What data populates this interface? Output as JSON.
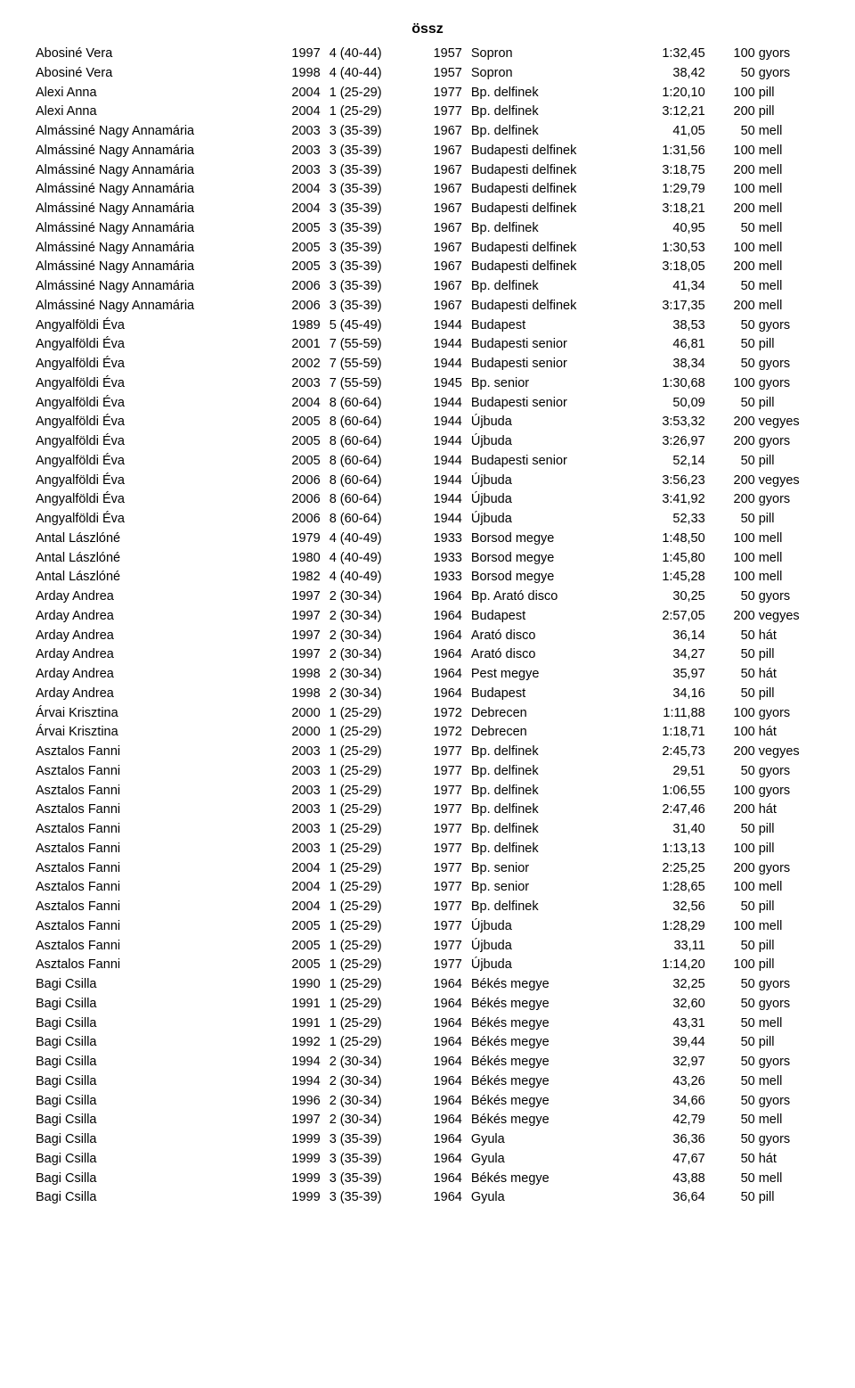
{
  "title": "össz",
  "table": {
    "rows": [
      [
        "Abosiné Vera",
        "1997",
        "4 (40-44)",
        "1957",
        "Sopron",
        "1:32,45",
        "100",
        "gyors"
      ],
      [
        "Abosiné Vera",
        "1998",
        "4 (40-44)",
        "1957",
        "Sopron",
        "38,42",
        "50",
        "gyors"
      ],
      [
        "Alexi Anna",
        "2004",
        "1 (25-29)",
        "1977",
        "Bp. delfinek",
        "1:20,10",
        "100",
        "pill"
      ],
      [
        "Alexi Anna",
        "2004",
        "1 (25-29)",
        "1977",
        "Bp. delfinek",
        "3:12,21",
        "200",
        "pill"
      ],
      [
        "Almássiné Nagy Annamária",
        "2003",
        "3 (35-39)",
        "1967",
        "Bp. delfinek",
        "41,05",
        "50",
        "mell"
      ],
      [
        "Almássiné Nagy Annamária",
        "2003",
        "3 (35-39)",
        "1967",
        "Budapesti delfinek",
        "1:31,56",
        "100",
        "mell"
      ],
      [
        "Almássiné Nagy Annamária",
        "2003",
        "3 (35-39)",
        "1967",
        "Budapesti delfinek",
        "3:18,75",
        "200",
        "mell"
      ],
      [
        "Almássiné Nagy Annamária",
        "2004",
        "3 (35-39)",
        "1967",
        "Budapesti delfinek",
        "1:29,79",
        "100",
        "mell"
      ],
      [
        "Almássiné Nagy Annamária",
        "2004",
        "3 (35-39)",
        "1967",
        "Budapesti delfinek",
        "3:18,21",
        "200",
        "mell"
      ],
      [
        "Almássiné Nagy Annamária",
        "2005",
        "3 (35-39)",
        "1967",
        "Bp. delfinek",
        "40,95",
        "50",
        "mell"
      ],
      [
        "Almássiné Nagy Annamária",
        "2005",
        "3 (35-39)",
        "1967",
        "Budapesti delfinek",
        "1:30,53",
        "100",
        "mell"
      ],
      [
        "Almássiné Nagy Annamária",
        "2005",
        "3 (35-39)",
        "1967",
        "Budapesti delfinek",
        "3:18,05",
        "200",
        "mell"
      ],
      [
        "Almássiné Nagy Annamária",
        "2006",
        "3 (35-39)",
        "1967",
        "Bp. delfinek",
        "41,34",
        "50",
        "mell"
      ],
      [
        "Almássiné Nagy Annamária",
        "2006",
        "3 (35-39)",
        "1967",
        "Budapesti delfinek",
        "3:17,35",
        "200",
        "mell"
      ],
      [
        "Angyalföldi Éva",
        "1989",
        "5 (45-49)",
        "1944",
        "Budapest",
        "38,53",
        "50",
        "gyors"
      ],
      [
        "Angyalföldi Éva",
        "2001",
        "7 (55-59)",
        "1944",
        "Budapesti senior",
        "46,81",
        "50",
        "pill"
      ],
      [
        "Angyalföldi Éva",
        "2002",
        "7 (55-59)",
        "1944",
        "Budapesti senior",
        "38,34",
        "50",
        "gyors"
      ],
      [
        "Angyalföldi Éva",
        "2003",
        "7 (55-59)",
        "1945",
        "Bp. senior",
        "1:30,68",
        "100",
        "gyors"
      ],
      [
        "Angyalföldi Éva",
        "2004",
        "8 (60-64)",
        "1944",
        "Budapesti senior",
        "50,09",
        "50",
        "pill"
      ],
      [
        "Angyalföldi Éva",
        "2005",
        "8 (60-64)",
        "1944",
        "Újbuda",
        "3:53,32",
        "200",
        "vegyes"
      ],
      [
        "Angyalföldi Éva",
        "2005",
        "8 (60-64)",
        "1944",
        "Újbuda",
        "3:26,97",
        "200",
        "gyors"
      ],
      [
        "Angyalföldi Éva",
        "2005",
        "8 (60-64)",
        "1944",
        "Budapesti senior",
        "52,14",
        "50",
        "pill"
      ],
      [
        "Angyalföldi Éva",
        "2006",
        "8 (60-64)",
        "1944",
        "Újbuda",
        "3:56,23",
        "200",
        "vegyes"
      ],
      [
        "Angyalföldi Éva",
        "2006",
        "8 (60-64)",
        "1944",
        "Újbuda",
        "3:41,92",
        "200",
        "gyors"
      ],
      [
        "Angyalföldi Éva",
        "2006",
        "8 (60-64)",
        "1944",
        "Újbuda",
        "52,33",
        "50",
        "pill"
      ],
      [
        "Antal Lászlóné",
        "1979",
        "4 (40-49)",
        "1933",
        "Borsod megye",
        "1:48,50",
        "100",
        "mell"
      ],
      [
        "Antal Lászlóné",
        "1980",
        "4 (40-49)",
        "1933",
        "Borsod megye",
        "1:45,80",
        "100",
        "mell"
      ],
      [
        "Antal Lászlóné",
        "1982",
        "4 (40-49)",
        "1933",
        "Borsod megye",
        "1:45,28",
        "100",
        "mell"
      ],
      [
        "Arday Andrea",
        "1997",
        "2 (30-34)",
        "1964",
        "Bp. Arató disco",
        "30,25",
        "50",
        "gyors"
      ],
      [
        "Arday Andrea",
        "1997",
        "2 (30-34)",
        "1964",
        "Budapest",
        "2:57,05",
        "200",
        "vegyes"
      ],
      [
        "Arday Andrea",
        "1997",
        "2 (30-34)",
        "1964",
        "Arató disco",
        "36,14",
        "50",
        "hát"
      ],
      [
        "Arday Andrea",
        "1997",
        "2 (30-34)",
        "1964",
        "Arató disco",
        "34,27",
        "50",
        "pill"
      ],
      [
        "Arday Andrea",
        "1998",
        "2 (30-34)",
        "1964",
        "Pest megye",
        "35,97",
        "50",
        "hát"
      ],
      [
        "Arday Andrea",
        "1998",
        "2 (30-34)",
        "1964",
        "Budapest",
        "34,16",
        "50",
        "pill"
      ],
      [
        "Árvai Krisztina",
        "2000",
        "1 (25-29)",
        "1972",
        "Debrecen",
        "1:11,88",
        "100",
        "gyors"
      ],
      [
        "Árvai Krisztina",
        "2000",
        "1 (25-29)",
        "1972",
        "Debrecen",
        "1:18,71",
        "100",
        "hát"
      ],
      [
        "Asztalos Fanni",
        "2003",
        "1 (25-29)",
        "1977",
        "Bp. delfinek",
        "2:45,73",
        "200",
        "vegyes"
      ],
      [
        "Asztalos Fanni",
        "2003",
        "1 (25-29)",
        "1977",
        "Bp. delfinek",
        "29,51",
        "50",
        "gyors"
      ],
      [
        "Asztalos Fanni",
        "2003",
        "1 (25-29)",
        "1977",
        "Bp. delfinek",
        "1:06,55",
        "100",
        "gyors"
      ],
      [
        "Asztalos Fanni",
        "2003",
        "1 (25-29)",
        "1977",
        "Bp. delfinek",
        "2:47,46",
        "200",
        "hát"
      ],
      [
        "Asztalos Fanni",
        "2003",
        "1 (25-29)",
        "1977",
        "Bp. delfinek",
        "31,40",
        "50",
        "pill"
      ],
      [
        "Asztalos Fanni",
        "2003",
        "1 (25-29)",
        "1977",
        "Bp. delfinek",
        "1:13,13",
        "100",
        "pill"
      ],
      [
        "Asztalos Fanni",
        "2004",
        "1 (25-29)",
        "1977",
        "Bp. senior",
        "2:25,25",
        "200",
        "gyors"
      ],
      [
        "Asztalos Fanni",
        "2004",
        "1 (25-29)",
        "1977",
        "Bp. senior",
        "1:28,65",
        "100",
        "mell"
      ],
      [
        "Asztalos Fanni",
        "2004",
        "1 (25-29)",
        "1977",
        "Bp. delfinek",
        "32,56",
        "50",
        "pill"
      ],
      [
        "Asztalos Fanni",
        "2005",
        "1 (25-29)",
        "1977",
        "Újbuda",
        "1:28,29",
        "100",
        "mell"
      ],
      [
        "Asztalos Fanni",
        "2005",
        "1 (25-29)",
        "1977",
        "Újbuda",
        "33,11",
        "50",
        "pill"
      ],
      [
        "Asztalos Fanni",
        "2005",
        "1 (25-29)",
        "1977",
        "Újbuda",
        "1:14,20",
        "100",
        "pill"
      ],
      [
        "Bagi Csilla",
        "1990",
        "1 (25-29)",
        "1964",
        "Békés megye",
        "32,25",
        "50",
        "gyors"
      ],
      [
        "Bagi Csilla",
        "1991",
        "1 (25-29)",
        "1964",
        "Békés megye",
        "32,60",
        "50",
        "gyors"
      ],
      [
        "Bagi Csilla",
        "1991",
        "1 (25-29)",
        "1964",
        "Békés megye",
        "43,31",
        "50",
        "mell"
      ],
      [
        "Bagi Csilla",
        "1992",
        "1 (25-29)",
        "1964",
        "Békés megye",
        "39,44",
        "50",
        "pill"
      ],
      [
        "Bagi Csilla",
        "1994",
        "2 (30-34)",
        "1964",
        "Békés megye",
        "32,97",
        "50",
        "gyors"
      ],
      [
        "Bagi Csilla",
        "1994",
        "2 (30-34)",
        "1964",
        "Békés megye",
        "43,26",
        "50",
        "mell"
      ],
      [
        "Bagi Csilla",
        "1996",
        "2 (30-34)",
        "1964",
        "Békés megye",
        "34,66",
        "50",
        "gyors"
      ],
      [
        "Bagi Csilla",
        "1997",
        "2 (30-34)",
        "1964",
        "Békés megye",
        "42,79",
        "50",
        "mell"
      ],
      [
        "Bagi Csilla",
        "1999",
        "3 (35-39)",
        "1964",
        "Gyula",
        "36,36",
        "50",
        "gyors"
      ],
      [
        "Bagi Csilla",
        "1999",
        "3 (35-39)",
        "1964",
        "Gyula",
        "47,67",
        "50",
        "hát"
      ],
      [
        "Bagi Csilla",
        "1999",
        "3 (35-39)",
        "1964",
        "Békés megye",
        "43,88",
        "50",
        "mell"
      ],
      [
        "Bagi Csilla",
        "1999",
        "3 (35-39)",
        "1964",
        "Gyula",
        "36,64",
        "50",
        "pill"
      ]
    ]
  }
}
